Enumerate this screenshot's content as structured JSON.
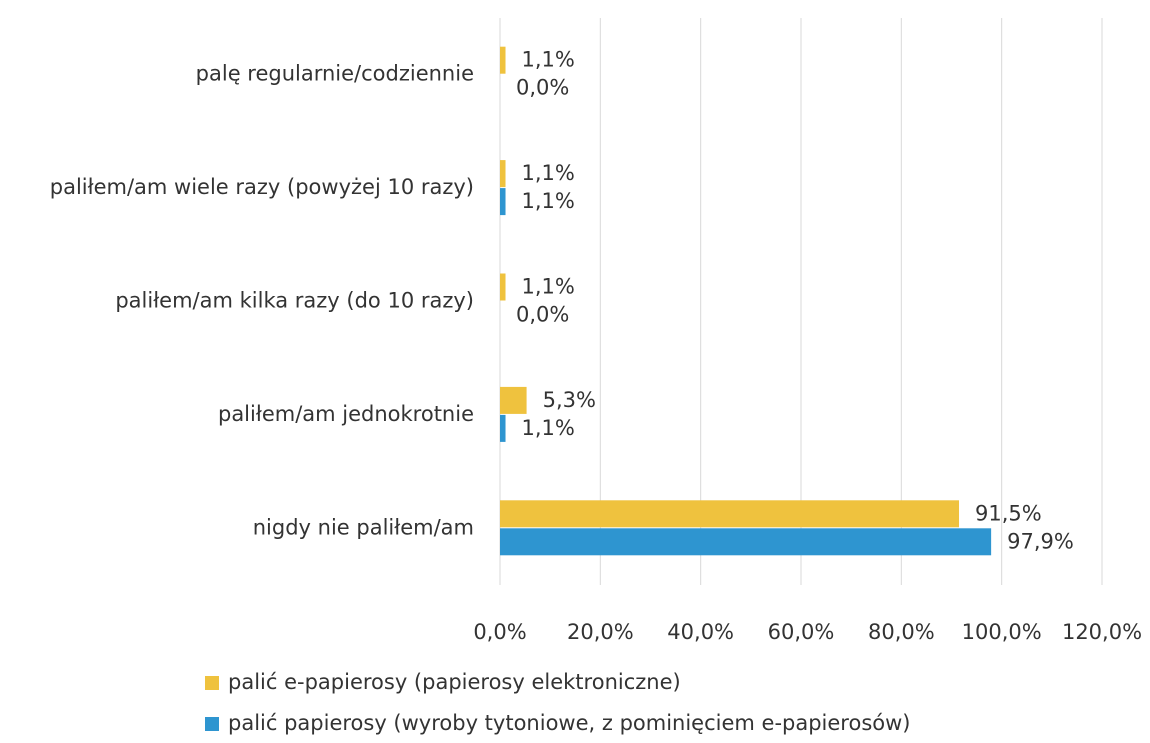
{
  "chart_data": {
    "type": "hbar",
    "categories": [
      "palę regularnie/codziennie",
      "paliłem/am wiele razy (powyżej 10 razy)",
      "paliłem/am kilka razy (do 10 razy)",
      "paliłem/am jednokrotnie",
      "nigdy nie paliłem/am"
    ],
    "series": [
      {
        "name": "palić e-papierosy (papierosy elektroniczne)",
        "color": "#efc23e",
        "values": [
          1.1,
          1.1,
          1.1,
          5.3,
          91.5
        ],
        "value_labels": [
          "1,1%",
          "1,1%",
          "1,1%",
          "5,3%",
          "91,5%"
        ]
      },
      {
        "name": "palić papierosy (wyroby tytoniowe, z pominięciem e-papierosów)",
        "color": "#2e95d0",
        "values": [
          0.0,
          1.1,
          0.0,
          1.1,
          97.9
        ],
        "value_labels": [
          "0,0%",
          "1,1%",
          "0,0%",
          "1,1%",
          "97,9%"
        ]
      }
    ],
    "xlim": [
      0,
      120
    ],
    "xticks": [
      {
        "value": 0,
        "label": "0,0%"
      },
      {
        "value": 20,
        "label": "20,0%"
      },
      {
        "value": 40,
        "label": "40,0%"
      },
      {
        "value": 60,
        "label": "60,0%"
      },
      {
        "value": 80,
        "label": "80,0%"
      },
      {
        "value": 100,
        "label": "100,0%"
      },
      {
        "value": 120,
        "label": "120,0%"
      }
    ],
    "grid": true
  }
}
